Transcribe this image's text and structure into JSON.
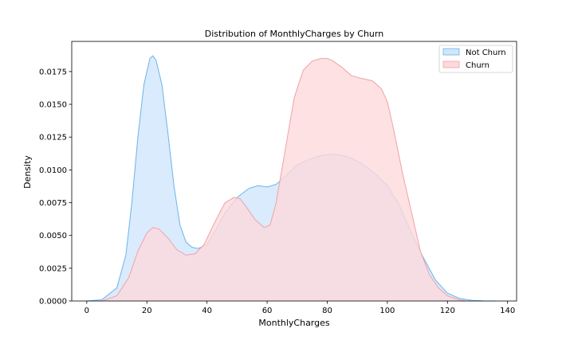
{
  "chart_data": {
    "type": "area",
    "title": "Distribution of MonthlyCharges by Churn",
    "xlabel": "MonthlyCharges",
    "ylabel": "Density",
    "xlim": [
      -5,
      143
    ],
    "ylim": [
      0,
      0.0198
    ],
    "xticks": [
      0,
      20,
      40,
      60,
      80,
      100,
      120,
      140
    ],
    "yticks": [
      0.0,
      0.0025,
      0.005,
      0.0075,
      0.01,
      0.0125,
      0.015,
      0.0175
    ],
    "ytick_labels": [
      "0.0000",
      "0.0025",
      "0.0050",
      "0.0075",
      "0.0100",
      "0.0125",
      "0.0150",
      "0.0175"
    ],
    "grid": false,
    "legend_position": "top-right",
    "series": [
      {
        "name": "Not Churn",
        "fill": "#cfe6fb",
        "stroke": "#6db3ea",
        "x": [
          0,
          5,
          10,
          13,
          15,
          17,
          19,
          21,
          22,
          23,
          25,
          27,
          29,
          31,
          33,
          35,
          37,
          40,
          43,
          46,
          50,
          54,
          57,
          60,
          63,
          66,
          70,
          74,
          78,
          82,
          85,
          88,
          92,
          96,
          100,
          104,
          108,
          112,
          116,
          120,
          124,
          128,
          132,
          136
        ],
        "y": [
          0.0,
          0.0001,
          0.001,
          0.0035,
          0.0075,
          0.0125,
          0.0165,
          0.0185,
          0.0187,
          0.0184,
          0.0165,
          0.0128,
          0.0088,
          0.0058,
          0.0045,
          0.0041,
          0.004,
          0.0043,
          0.0055,
          0.0067,
          0.0079,
          0.0086,
          0.0088,
          0.0087,
          0.0089,
          0.0095,
          0.0104,
          0.0108,
          0.0111,
          0.0112,
          0.0111,
          0.0109,
          0.0104,
          0.0097,
          0.0088,
          0.0073,
          0.0052,
          0.0033,
          0.0016,
          0.0006,
          0.0002,
          5e-05,
          1e-05,
          0.0
        ]
      },
      {
        "name": "Churn",
        "fill": "#fdd9dc",
        "stroke": "#f0a2a8",
        "x": [
          5,
          10,
          14,
          17,
          20,
          22,
          24,
          27,
          30,
          33,
          36,
          39,
          43,
          46,
          49,
          51,
          53,
          56,
          59,
          61,
          63,
          66,
          69,
          72,
          75,
          78,
          80,
          82,
          85,
          88,
          91,
          95,
          98,
          100,
          102,
          105,
          108,
          111,
          114,
          117,
          120,
          123,
          126
        ],
        "y": [
          0.0,
          0.0004,
          0.0018,
          0.0038,
          0.0052,
          0.0056,
          0.0055,
          0.0048,
          0.0039,
          0.0035,
          0.0036,
          0.0043,
          0.0062,
          0.0075,
          0.0079,
          0.0078,
          0.0072,
          0.0062,
          0.0056,
          0.0058,
          0.0075,
          0.0115,
          0.0155,
          0.0176,
          0.0183,
          0.0185,
          0.0185,
          0.0183,
          0.0178,
          0.0172,
          0.017,
          0.0168,
          0.0162,
          0.0152,
          0.0132,
          0.0098,
          0.0068,
          0.0038,
          0.002,
          0.001,
          0.0004,
          0.00015,
          0.0
        ]
      }
    ]
  }
}
